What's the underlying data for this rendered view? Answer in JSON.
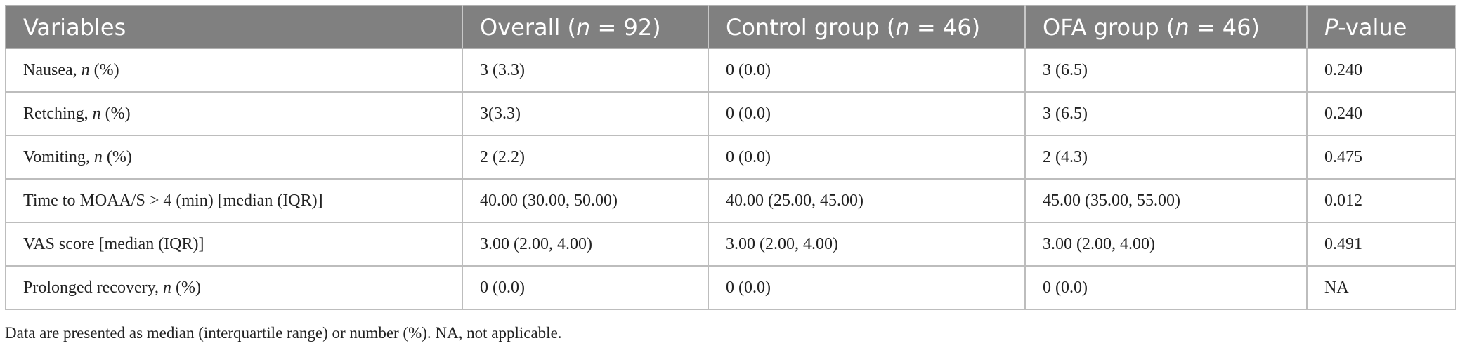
{
  "table": {
    "header": [
      [
        {
          "text": "Variables"
        }
      ],
      [
        {
          "text": "Overall ("
        },
        {
          "text": "n",
          "italic": true
        },
        {
          "text": " = 92)"
        }
      ],
      [
        {
          "text": "Control group ("
        },
        {
          "text": "n",
          "italic": true
        },
        {
          "text": " = 46)"
        }
      ],
      [
        {
          "text": "OFA group ("
        },
        {
          "text": "n",
          "italic": true
        },
        {
          "text": " = 46)"
        }
      ],
      [
        {
          "text": "P",
          "italic": true
        },
        {
          "text": "-value"
        }
      ]
    ],
    "rows": [
      [
        [
          {
            "text": "Nausea, "
          },
          {
            "text": "n",
            "italic": true
          },
          {
            "text": " (%)"
          }
        ],
        "3 (3.3)",
        "0 (0.0)",
        "3 (6.5)",
        "0.240"
      ],
      [
        [
          {
            "text": "Retching, "
          },
          {
            "text": "n",
            "italic": true
          },
          {
            "text": " (%)"
          }
        ],
        "3(3.3)",
        "0 (0.0)",
        "3 (6.5)",
        "0.240"
      ],
      [
        [
          {
            "text": "Vomiting, "
          },
          {
            "text": "n",
            "italic": true
          },
          {
            "text": " (%)"
          }
        ],
        "2 (2.2)",
        "0 (0.0)",
        "2 (4.3)",
        "0.475"
      ],
      [
        [
          {
            "text": "Time to MOAA/S > 4 (min) [median (IQR)]"
          }
        ],
        "40.00 (30.00, 50.00)",
        "40.00 (25.00, 45.00)",
        "45.00 (35.00, 55.00)",
        "0.012"
      ],
      [
        [
          {
            "text": "VAS score [median (IQR)]"
          }
        ],
        "3.00 (2.00, 4.00)",
        "3.00 (2.00, 4.00)",
        "3.00 (2.00, 4.00)",
        "0.491"
      ],
      [
        [
          {
            "text": "Prolonged recovery, "
          },
          {
            "text": "n",
            "italic": true
          },
          {
            "text": " (%)"
          }
        ],
        "0 (0.0)",
        "0 (0.0)",
        "0 (0.0)",
        "NA"
      ]
    ],
    "footnote": "Data are presented as median (interquartile range) or number (%). NA, not applicable."
  }
}
